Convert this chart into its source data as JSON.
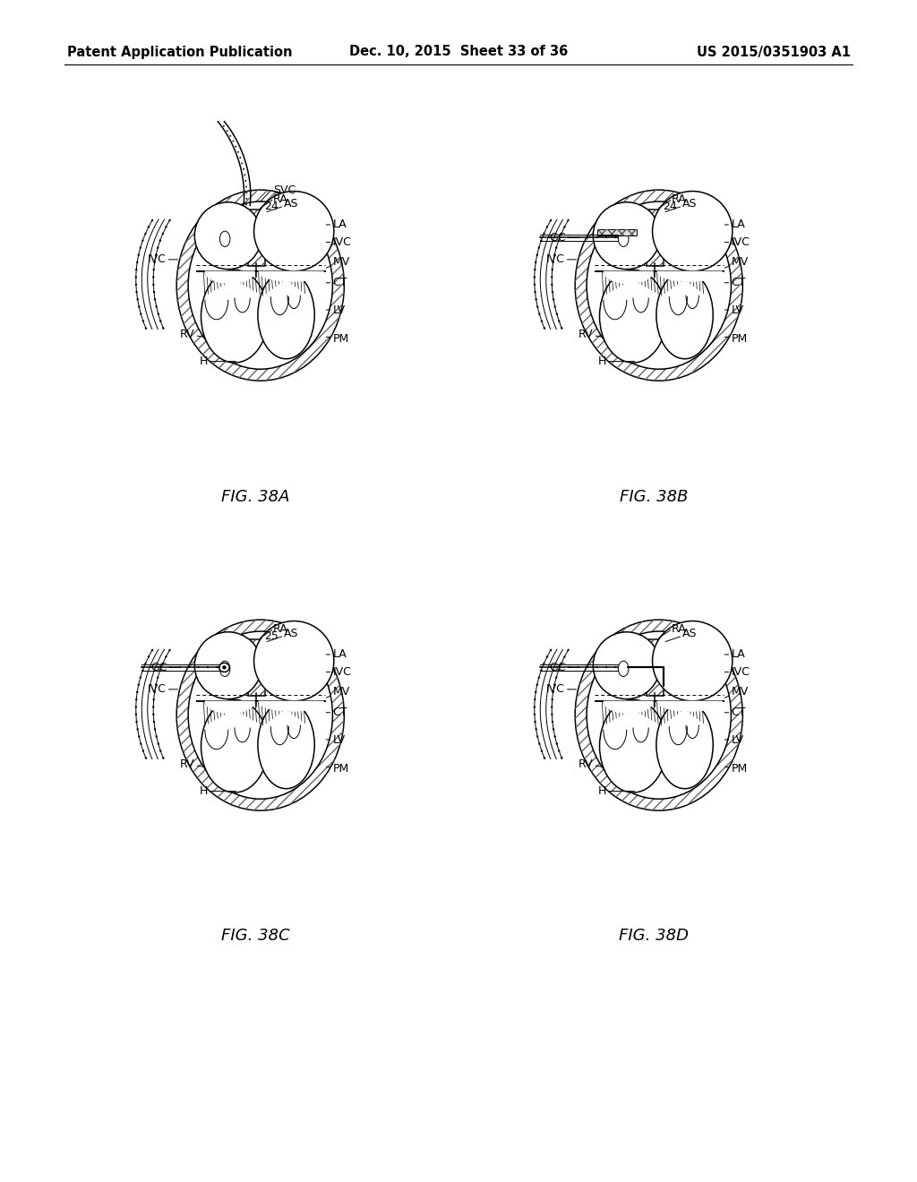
{
  "background_color": "#ffffff",
  "header_left": "Patent Application Publication",
  "header_mid": "Dec. 10, 2015  Sheet 33 of 36",
  "header_right": "US 2015/0351903 A1",
  "header_fontsize": 10.5,
  "figures": [
    {
      "id": "38A",
      "label": "FIG. 38A",
      "has_SVC": true,
      "has_GC_line": false,
      "number": "24",
      "gc_style": "none"
    },
    {
      "id": "38B",
      "label": "FIG. 38B",
      "has_SVC": false,
      "has_GC_line": true,
      "number": "24",
      "gc_style": "bar"
    },
    {
      "id": "38C",
      "label": "FIG. 38C",
      "has_SVC": false,
      "has_GC_line": true,
      "number": "25",
      "gc_style": "circle_device"
    },
    {
      "id": "38D",
      "label": "FIG. 38D",
      "has_SVC": false,
      "has_GC_line": true,
      "number": "",
      "gc_style": "hook"
    }
  ]
}
